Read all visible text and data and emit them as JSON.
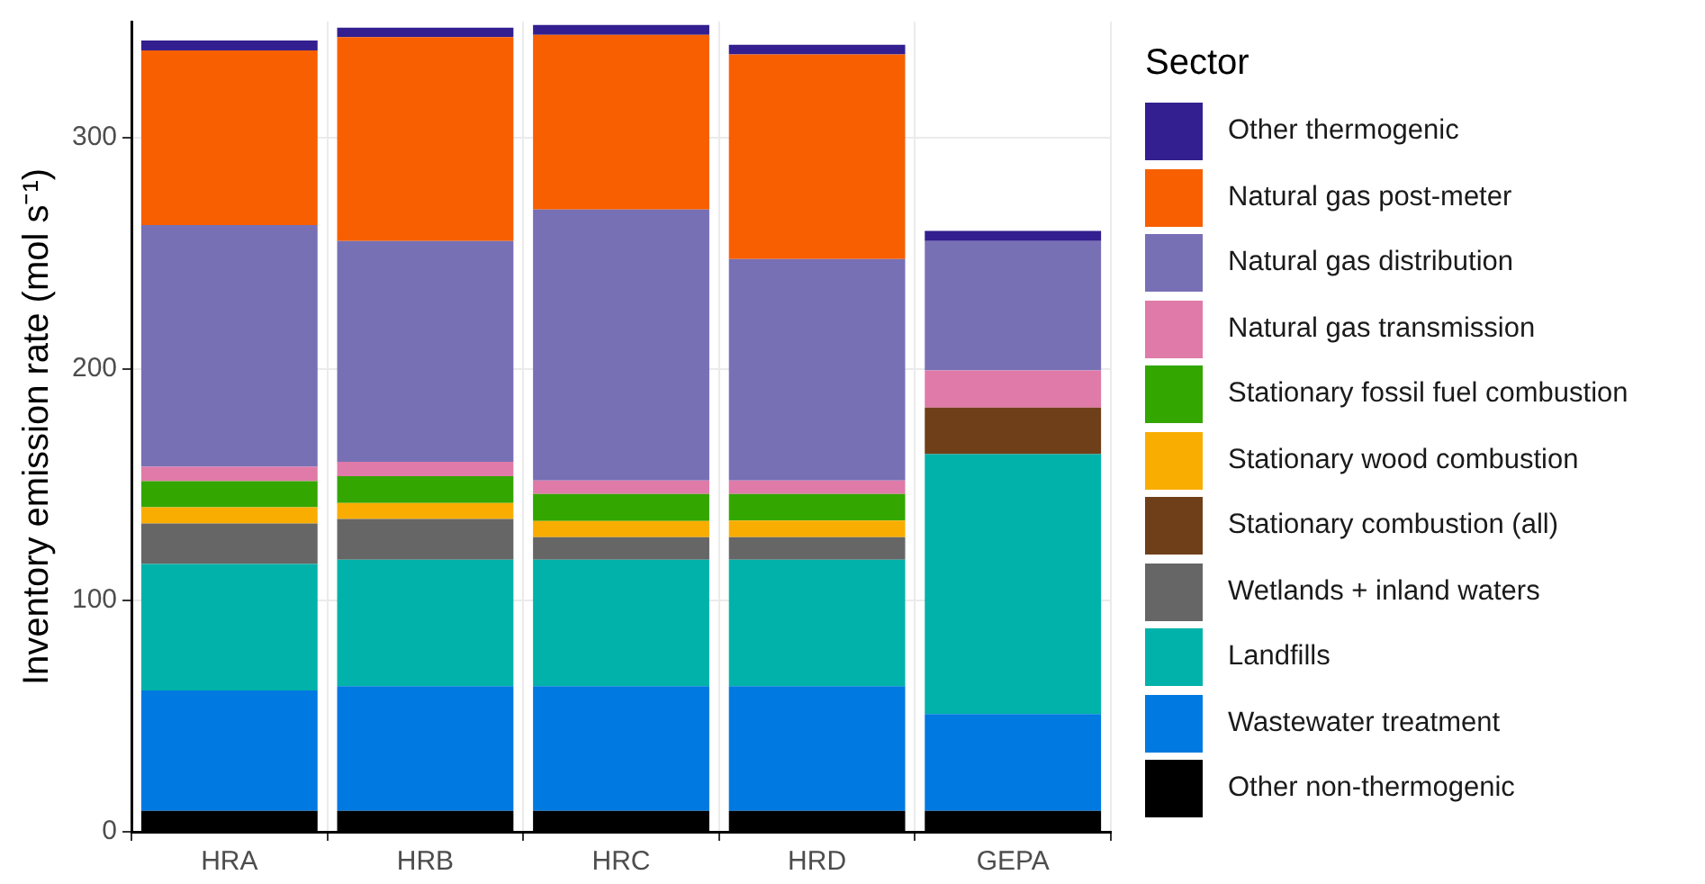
{
  "chart_data": {
    "type": "bar",
    "stacked": true,
    "ylabel": "Inventory emission rate (mol s⁻¹)",
    "legend_title": "Sector",
    "legend": "right",
    "grid": true,
    "categories": [
      "HRA",
      "HRB",
      "HRC",
      "HRD",
      "GEPA"
    ],
    "ylim": [
      0,
      350
    ],
    "yticks": [
      0,
      100,
      200,
      300
    ],
    "series": [
      {
        "name": "Other non-thermogenic",
        "color": "#000000",
        "values": [
          9,
          9,
          9,
          9,
          9
        ]
      },
      {
        "name": "Wastewater treatment",
        "color": "#0079e0",
        "values": [
          52.1,
          53.9,
          53.9,
          53.9,
          41.8
        ]
      },
      {
        "name": "Landfills",
        "color": "#00b2a9",
        "values": [
          54.6,
          54.6,
          54.6,
          54.6,
          112.3
        ]
      },
      {
        "name": "Wetlands + inland waters",
        "color": "#666666",
        "values": [
          17.5,
          17.6,
          9.8,
          9.8,
          null
        ]
      },
      {
        "name": "Stationary combustion (all)",
        "color": "#6f3f1a",
        "values": [
          null,
          null,
          null,
          null,
          20.2
        ]
      },
      {
        "name": "Stationary wood combustion",
        "color": "#f9ad00",
        "values": [
          7.0,
          6.9,
          7.0,
          7.2,
          null
        ]
      },
      {
        "name": "Stationary fossil fuel combustion",
        "color": "#33a600",
        "values": [
          11.3,
          11.6,
          11.6,
          11.4,
          null
        ]
      },
      {
        "name": "Natural gas transmission",
        "color": "#e07aa8",
        "values": [
          6.2,
          6.2,
          5.9,
          5.9,
          16.0
        ]
      },
      {
        "name": "Natural gas distribution",
        "color": "#7870b5",
        "values": [
          104.4,
          95.4,
          117.0,
          95.6,
          55.9
        ]
      },
      {
        "name": "Natural gas post-meter",
        "color": "#f75f00",
        "values": [
          75.5,
          88.1,
          75.5,
          88.4,
          null
        ]
      },
      {
        "name": "Other thermogenic",
        "color": "#331f8f",
        "values": [
          4.2,
          4.1,
          4.2,
          4.2,
          4.4
        ]
      }
    ]
  }
}
